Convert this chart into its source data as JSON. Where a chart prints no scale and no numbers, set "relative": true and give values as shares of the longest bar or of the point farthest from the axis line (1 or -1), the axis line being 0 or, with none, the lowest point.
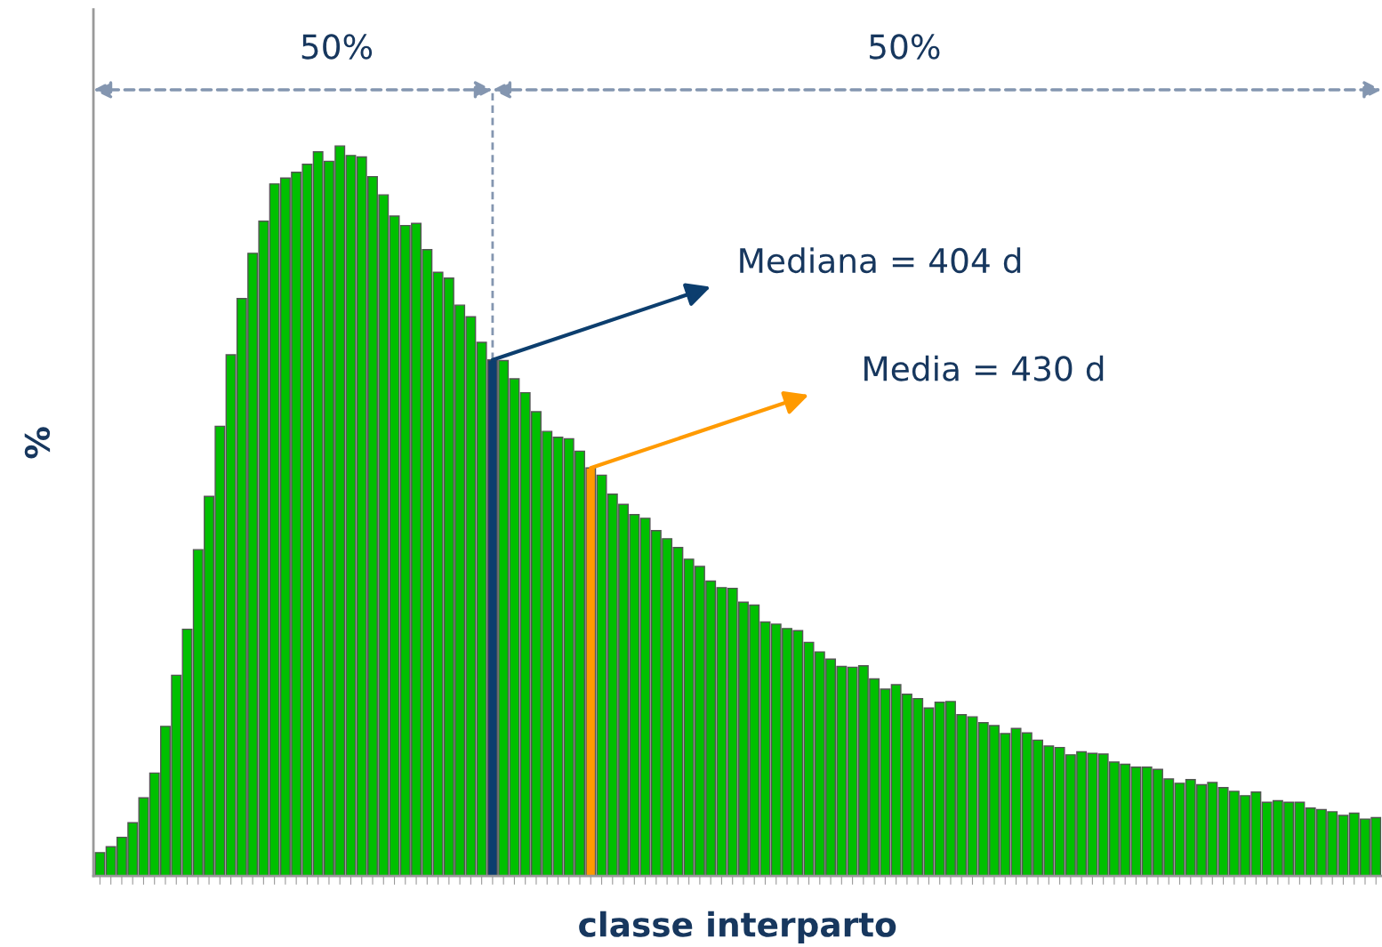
{
  "chart_data": {
    "type": "bar",
    "relative": true,
    "xlabel": "classe interparto",
    "ylabel": "%",
    "annotations": [
      "50%",
      "50%",
      "Mediana = 404 d",
      "Media = 430 d"
    ],
    "categories": [
      null,
      null,
      null,
      null,
      null,
      null,
      null,
      null,
      null,
      null,
      null,
      null,
      null,
      null,
      null,
      null,
      null,
      null,
      null,
      null,
      null,
      null,
      null,
      null,
      null,
      null,
      null,
      null,
      null,
      null,
      null,
      null,
      null,
      null,
      null,
      null,
      null,
      null,
      null,
      null,
      null,
      null,
      null,
      null,
      null,
      null,
      null,
      null,
      null,
      null,
      null,
      null,
      null,
      null,
      null,
      null,
      null,
      null,
      null,
      null,
      null,
      null,
      null,
      null,
      null,
      null,
      null,
      null,
      null,
      null,
      null,
      null,
      null,
      null,
      null,
      null,
      null,
      null,
      null,
      null,
      null,
      null,
      null,
      null,
      null,
      null,
      null,
      null,
      null,
      null,
      null,
      null,
      null,
      null,
      null,
      null,
      null,
      null,
      null,
      null,
      null,
      null,
      null,
      null,
      null,
      null,
      null,
      null,
      null,
      null,
      null,
      null,
      null,
      null,
      null,
      null,
      null,
      null
    ],
    "values": [
      0.032,
      0.04,
      0.053,
      0.073,
      0.107,
      0.141,
      0.205,
      0.275,
      0.338,
      0.447,
      0.52,
      0.616,
      0.714,
      0.791,
      0.853,
      0.897,
      0.948,
      0.956,
      0.964,
      0.975,
      0.992,
      0.979,
      1,
      0.987,
      0.985,
      0.958,
      0.933,
      0.904,
      0.891,
      0.894,
      0.858,
      0.827,
      0.819,
      0.782,
      0.766,
      0.731,
      0.707,
      0.706,
      0.681,
      0.662,
      0.636,
      0.609,
      0.601,
      0.599,
      0.582,
      0.559,
      0.549,
      0.523,
      0.509,
      0.495,
      0.49,
      0.473,
      0.462,
      0.45,
      0.434,
      0.424,
      0.404,
      0.395,
      0.394,
      0.375,
      0.371,
      0.348,
      0.345,
      0.339,
      0.336,
      0.32,
      0.307,
      0.297,
      0.287,
      0.286,
      0.288,
      0.27,
      0.256,
      0.262,
      0.249,
      0.243,
      0.23,
      0.238,
      0.239,
      0.221,
      0.218,
      0.21,
      0.206,
      0.195,
      0.202,
      0.196,
      0.186,
      0.178,
      0.176,
      0.166,
      0.17,
      0.168,
      0.167,
      0.156,
      0.153,
      0.149,
      0.149,
      0.146,
      0.133,
      0.127,
      0.132,
      0.125,
      0.128,
      0.121,
      0.116,
      0.11,
      0.115,
      0.101,
      0.103,
      0.101,
      0.101,
      0.093,
      0.091,
      0.088,
      0.083,
      0.086,
      0.078,
      0.08
    ],
    "colors": [
      "#00c000",
      "#00c000",
      "#00c000",
      "#00c000",
      "#00c000",
      "#00c000",
      "#00c000",
      "#00c000",
      "#00c000",
      "#00c000",
      "#00c000",
      "#00c000",
      "#00c000",
      "#00c000",
      "#00c000",
      "#00c000",
      "#00c000",
      "#00c000",
      "#00c000",
      "#00c000",
      "#00c000",
      "#00c000",
      "#00c000",
      "#00c000",
      "#00c000",
      "#00c000",
      "#00c000",
      "#00c000",
      "#00c000",
      "#00c000",
      "#00c000",
      "#00c000",
      "#00c000",
      "#00c000",
      "#00c000",
      "#00c000",
      "#0c3e6e",
      "#00c000",
      "#00c000",
      "#00c000",
      "#00c000",
      "#00c000",
      "#00c000",
      "#00c000",
      "#00c000",
      "#ff9a00",
      "#00c000",
      "#00c000",
      "#00c000",
      "#00c000",
      "#00c000",
      "#00c000",
      "#00c000",
      "#00c000",
      "#00c000",
      "#00c000",
      "#00c000",
      "#00c000",
      "#00c000",
      "#00c000",
      "#00c000",
      "#00c000",
      "#00c000",
      "#00c000",
      "#00c000",
      "#00c000",
      "#00c000",
      "#00c000",
      "#00c000",
      "#00c000",
      "#00c000",
      "#00c000",
      "#00c000",
      "#00c000",
      "#00c000",
      "#00c000",
      "#00c000",
      "#00c000",
      "#00c000",
      "#00c000",
      "#00c000",
      "#00c000",
      "#00c000",
      "#00c000",
      "#00c000",
      "#00c000",
      "#00c000",
      "#00c000",
      "#00c000",
      "#00c000",
      "#00c000",
      "#00c000",
      "#00c000",
      "#00c000",
      "#00c000",
      "#00c000",
      "#00c000",
      "#00c000",
      "#00c000",
      "#00c000",
      "#00c000",
      "#00c000",
      "#00c000",
      "#00c000",
      "#00c000",
      "#00c000",
      "#00c000",
      "#00c000",
      "#00c000",
      "#00c000",
      "#00c000",
      "#00c000",
      "#00c000",
      "#00c000",
      "#00c000",
      "#00c000",
      "#00c000",
      "#00c000"
    ]
  }
}
